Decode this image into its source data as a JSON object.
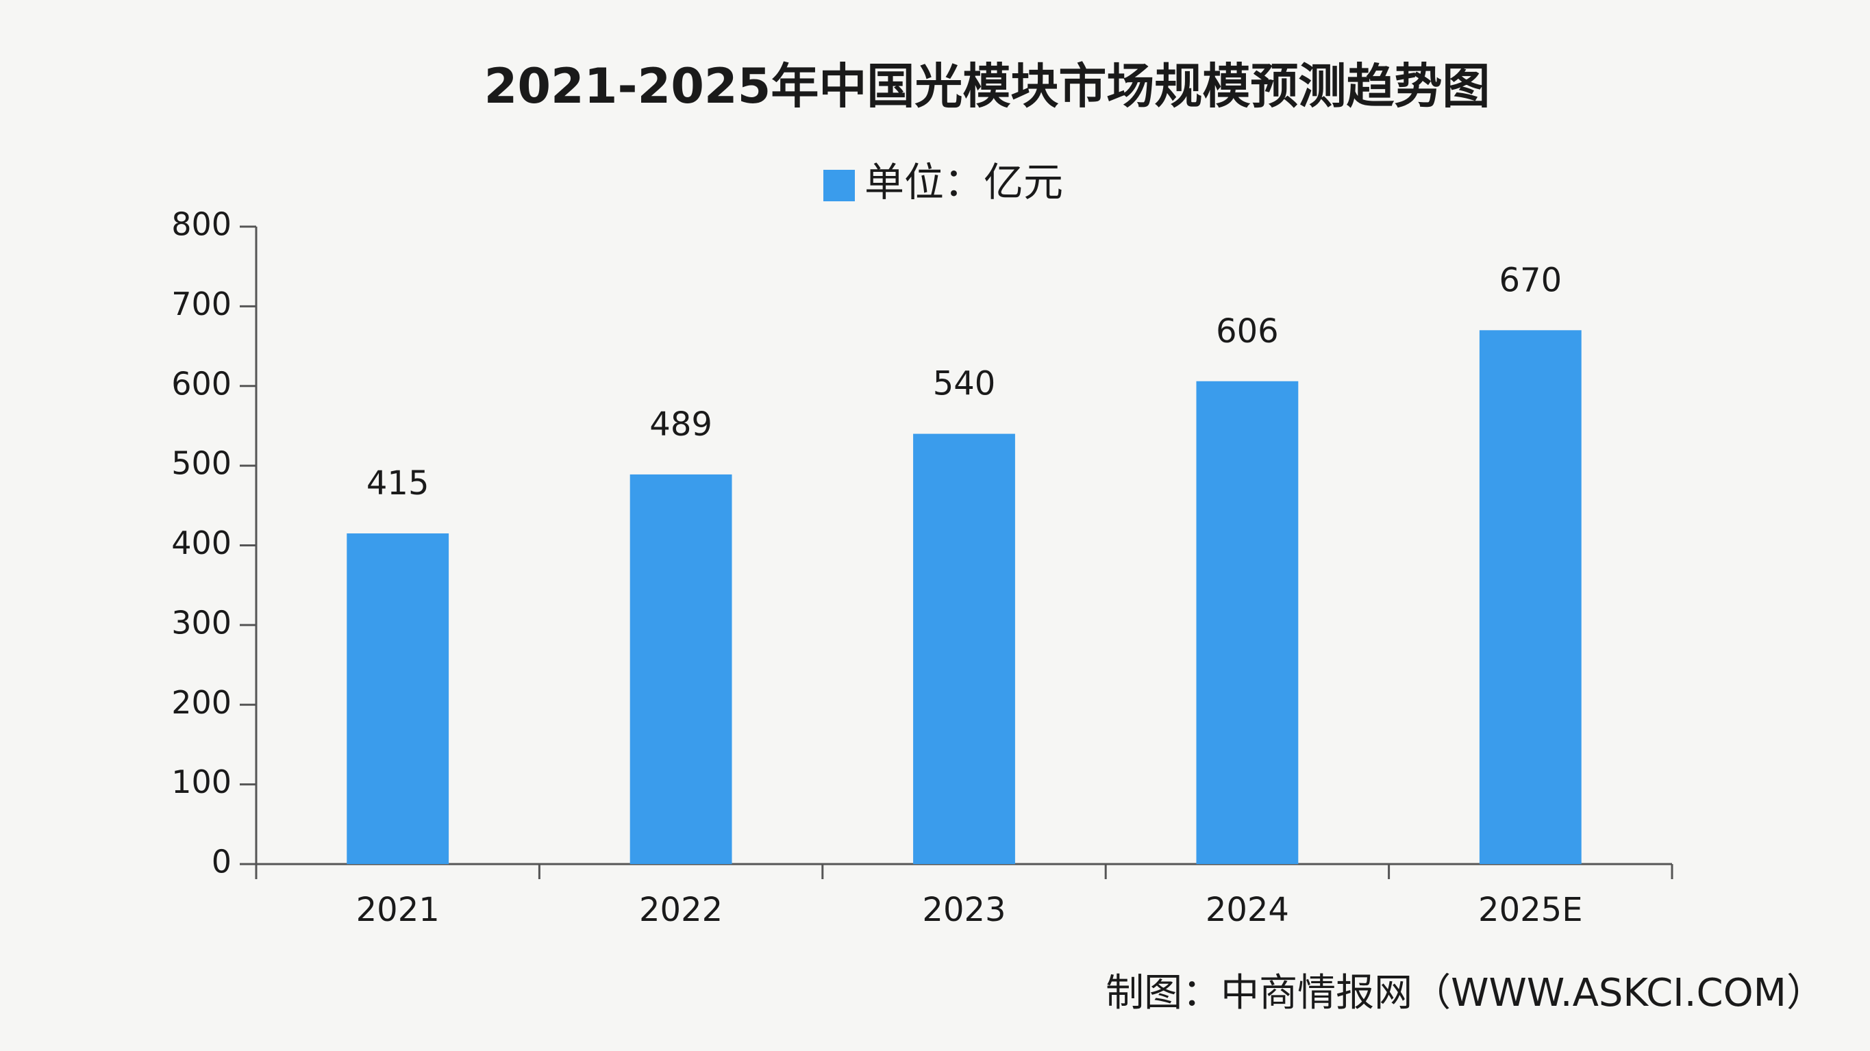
{
  "chart_data": {
    "type": "bar",
    "title": "2021-2025年中国光模块市场规模预测趋势图",
    "categories": [
      "2021",
      "2022",
      "2023",
      "2024",
      "2025E"
    ],
    "series": [
      {
        "name": "单位：亿元",
        "color": "#3a9cec",
        "values": [
          415,
          489,
          540,
          606,
          670
        ]
      }
    ],
    "ylim": [
      0,
      800
    ],
    "yticks": [
      0,
      100,
      200,
      300,
      400,
      500,
      600,
      700,
      800
    ],
    "grid": false,
    "legend": "top",
    "source": "制图：中商情报网（WWW.ASKCI.COM）"
  }
}
